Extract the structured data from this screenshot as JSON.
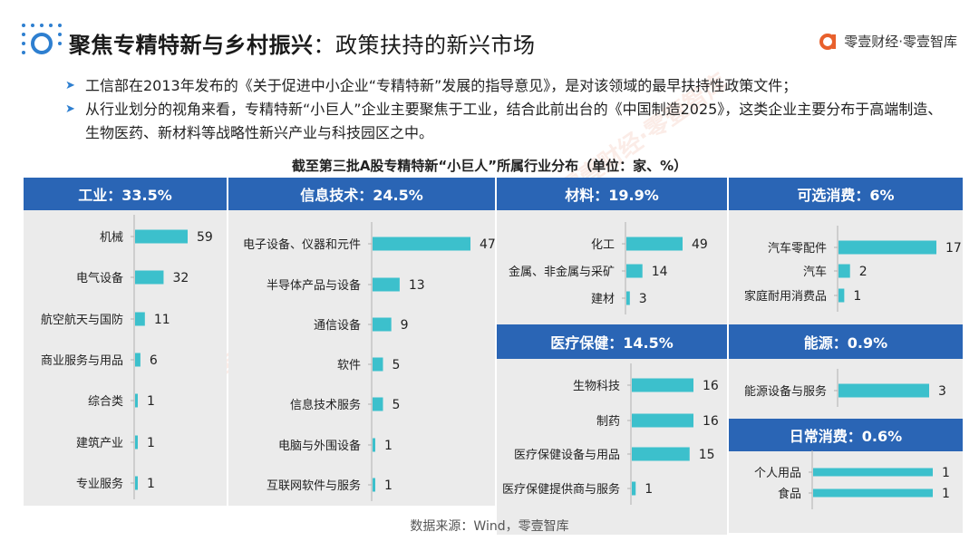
{
  "header": {
    "title": "聚焦专精特新与乡村振兴",
    "subtitle": "：政策扶持的新兴市场",
    "brand": "零壹财经·零壹智库"
  },
  "bullets": [
    "工信部在2013年发布的《关于促进中小企业“专精特新”发展的指导意见》，是对该领域的最早扶持性政策文件；",
    "从行业划分的视角来看，专精特新“小巨人”企业主要聚焦于工业，结合此前出台的《中国制造2025》，这类企业主要分布于高端制造、生物医药、新材料等战略性新兴产业与科技园区之中。"
  ],
  "chart_title": "截至第三批A股专精特新“小巨人”所属行业分布（单位：家、%）",
  "footer": "数据来源：Wind，零壹智库",
  "watermark": "零壹财经·零壹智库",
  "colors": {
    "header_bg": "#2a65b5",
    "bar": "#3cc0cc",
    "panel_bg": "#ebebeb",
    "accent": "#2e7fd0"
  },
  "chart_data": [
    {
      "type": "bar",
      "orientation": "horizontal",
      "title": "工业：33.5%",
      "categories": [
        "机械",
        "电气设备",
        "航空航天与国防",
        "商业服务与用品",
        "综合类",
        "建筑产业",
        "专业服务"
      ],
      "values": [
        59,
        32,
        11,
        6,
        1,
        1,
        1
      ]
    },
    {
      "type": "bar",
      "orientation": "horizontal",
      "title": "信息技术：24.5%",
      "categories": [
        "电子设备、仪器和元件",
        "半导体产品与设备",
        "通信设备",
        "软件",
        "信息技术服务",
        "电脑与外围设备",
        "互联网软件与服务"
      ],
      "values": [
        47,
        13,
        9,
        5,
        5,
        1,
        1
      ]
    },
    {
      "type": "bar",
      "orientation": "horizontal",
      "title": "材料：19.9%",
      "categories": [
        "化工",
        "金属、非金属与采矿",
        "建材"
      ],
      "values": [
        49,
        14,
        3
      ]
    },
    {
      "type": "bar",
      "orientation": "horizontal",
      "title": "可选消费：6%",
      "categories": [
        "汽车零配件",
        "汽车",
        "家庭耐用消费品"
      ],
      "values": [
        17,
        2,
        1
      ]
    },
    {
      "type": "bar",
      "orientation": "horizontal",
      "title": "医疗保健：14.5%",
      "categories": [
        "生物科技",
        "制药",
        "医疗保健设备与用品",
        "医疗保健提供商与服务"
      ],
      "values": [
        16,
        16,
        15,
        1
      ]
    },
    {
      "type": "bar",
      "orientation": "horizontal",
      "title": "能源：0.9%",
      "categories": [
        "能源设备与服务"
      ],
      "values": [
        3
      ]
    },
    {
      "type": "bar",
      "orientation": "horizontal",
      "title": "日常消费：0.6%",
      "categories": [
        "个人用品",
        "食品"
      ],
      "values": [
        1,
        1
      ]
    }
  ]
}
